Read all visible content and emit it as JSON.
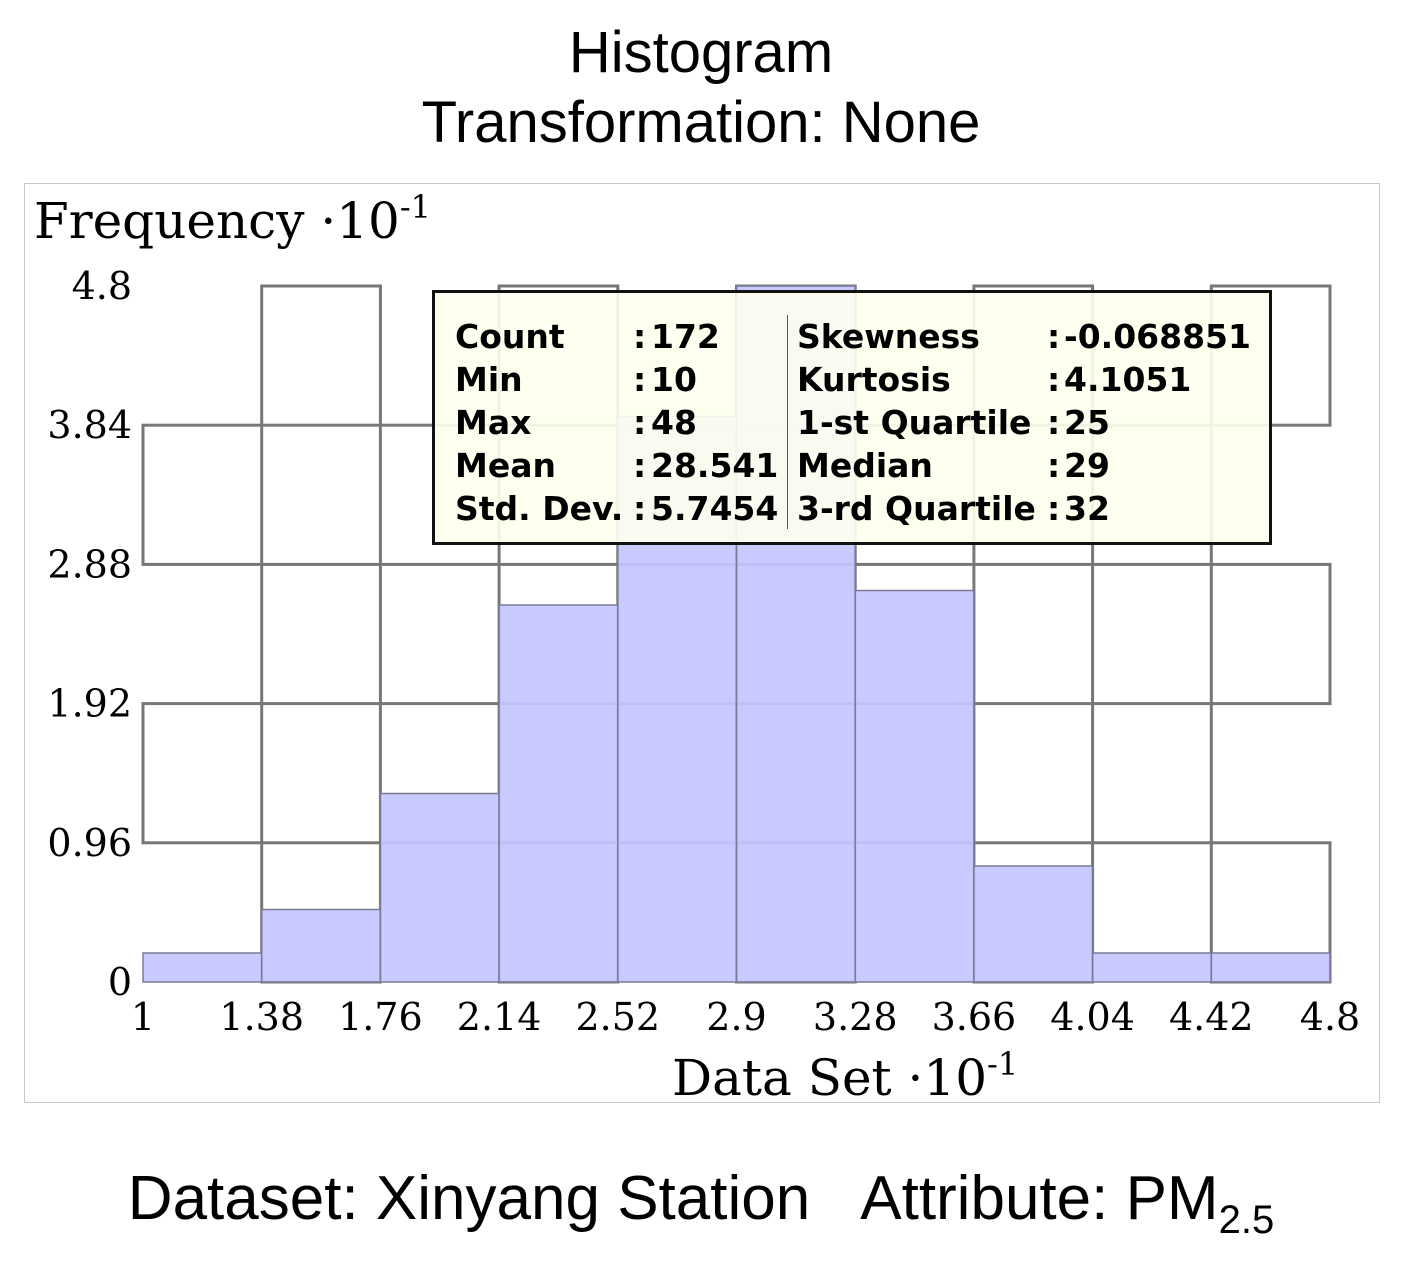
{
  "header": {
    "title": "Histogram",
    "subtitle": "Transformation: None"
  },
  "chart_data": {
    "type": "bar",
    "histogram": true,
    "ylabel": "Frequency ·10",
    "ylabel_exp": "-1",
    "xlabel": "Data Set ·10",
    "xlabel_exp": "-1",
    "x_ticks": [
      "1",
      "1.38",
      "1.76",
      "2.14",
      "2.52",
      "2.9",
      "3.28",
      "3.66",
      "4.04",
      "4.42",
      "4.8"
    ],
    "y_ticks": [
      "0",
      "0.96",
      "1.92",
      "2.88",
      "3.84",
      "4.8"
    ],
    "bin_edges": [
      1,
      1.38,
      1.76,
      2.14,
      2.52,
      2.9,
      3.28,
      3.66,
      4.04,
      4.42,
      4.8
    ],
    "values": [
      0.2,
      0.5,
      1.3,
      2.6,
      3.9,
      4.8,
      2.7,
      0.8,
      0.2,
      0.2
    ],
    "xlim": [
      1,
      4.8
    ],
    "ylim": [
      0,
      4.8
    ],
    "grid": true,
    "colors": {
      "bar": "#c4c6ff",
      "bar_edge": "#7a7a96",
      "grid": "#777777"
    }
  },
  "stats": {
    "left": [
      {
        "label": "Count",
        "value": "172"
      },
      {
        "label": "Min",
        "value": "10"
      },
      {
        "label": "Max",
        "value": "48"
      },
      {
        "label": "Mean",
        "value": "28.541"
      },
      {
        "label": "Std. Dev.",
        "value": "5.7454"
      }
    ],
    "right": [
      {
        "label": "Skewness",
        "value": "-0.068851"
      },
      {
        "label": "Kurtosis",
        "value": "4.1051"
      },
      {
        "label": "1-st Quartile",
        "value": "25"
      },
      {
        "label": "Median",
        "value": "29"
      },
      {
        "label": "3-rd Quartile",
        "value": "32"
      }
    ]
  },
  "footer": {
    "dataset": "Dataset: Xinyang Station",
    "attribute": "Attribute: PM",
    "attribute_sub": "2.5"
  }
}
